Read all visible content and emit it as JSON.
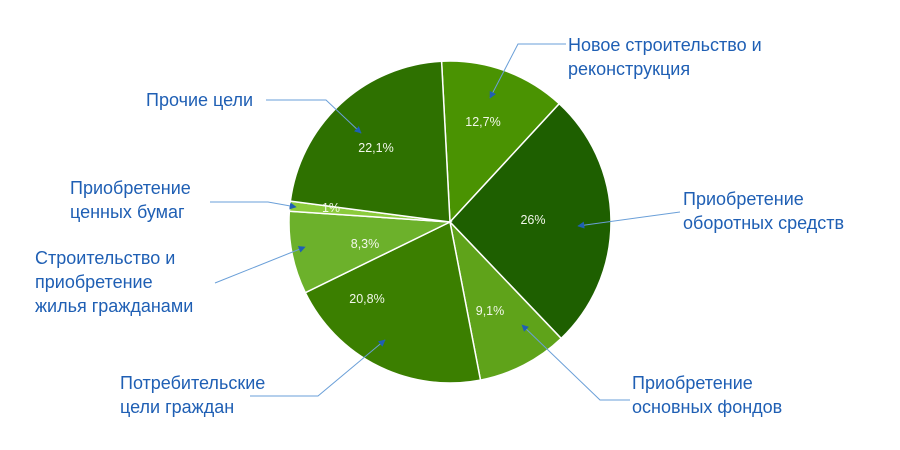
{
  "chart_data": {
    "type": "pie",
    "title": "",
    "slices": [
      {
        "label": [
          "Новое строительство и",
          "реконструкция"
        ],
        "value": 12.7,
        "value_label": "12,7%",
        "color": "#4a9302"
      },
      {
        "label": [
          "Приобретение",
          "оборотных средств"
        ],
        "value": 26,
        "value_label": "26%",
        "color": "#1e5f00"
      },
      {
        "label": [
          "Приобретение",
          "основных фондов"
        ],
        "value": 9.1,
        "value_label": "9,1%",
        "color": "#5fa31a"
      },
      {
        "label": [
          "Потребительские",
          "цели граждан"
        ],
        "value": 20.8,
        "value_label": "20,8%",
        "color": "#3b7f00"
      },
      {
        "label": [
          "Строительство и",
          "приобретение",
          "жилья гражданами"
        ],
        "value": 8.3,
        "value_label": "8,3%",
        "color": "#6cb12b"
      },
      {
        "label": [
          "Приобретение",
          "ценных бумаг"
        ],
        "value": 1,
        "value_label": "1%",
        "color": "#8bcb3c"
      },
      {
        "label": [
          "Прочие цели"
        ],
        "value": 22.1,
        "value_label": "22,1%",
        "color": "#2e7100"
      }
    ],
    "label_color": "#1f5fb4",
    "legend": "none"
  }
}
